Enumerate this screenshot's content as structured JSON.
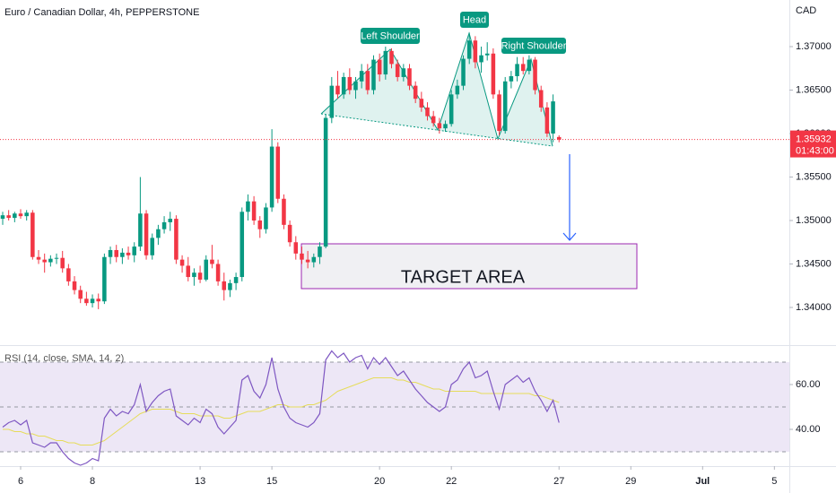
{
  "chart_data": [
    {
      "type": "candlestick",
      "title": "Euro / Canadian Dollar, 4h, PEPPERSTONE",
      "currency": "CAD",
      "up_color": "#089981",
      "down_color": "#f23645",
      "xlim": [
        -0.45,
        131.5
      ],
      "ylim": [
        1.33567,
        1.37536
      ],
      "yticks": [
        {
          "value": 1.34,
          "label": "1.34000"
        },
        {
          "value": 1.345,
          "label": "1.34500"
        },
        {
          "value": 1.35,
          "label": "1.35000"
        },
        {
          "value": 1.355,
          "label": "1.35500"
        },
        {
          "value": 1.36,
          "label": "1.36000"
        },
        {
          "value": 1.365,
          "label": "1.36500"
        },
        {
          "value": 1.37,
          "label": "1.37000"
        }
      ],
      "xticks": [
        {
          "value": 3,
          "label": "6"
        },
        {
          "value": 15,
          "label": "8"
        },
        {
          "value": 33,
          "label": "13"
        },
        {
          "value": 45,
          "label": "15"
        },
        {
          "value": 63,
          "label": "20"
        },
        {
          "value": 75,
          "label": "22"
        },
        {
          "value": 93,
          "label": "27"
        },
        {
          "value": 105,
          "label": "29"
        },
        {
          "value": 117,
          "label": "Jul"
        },
        {
          "value": 129,
          "label": "5"
        }
      ],
      "last_price": 1.35932,
      "countdown": "01:43:00",
      "annotations": [
        "Left Shoulder",
        "Head",
        "Right Shoulder",
        "TARGET AREA"
      ],
      "x": [
        0,
        1,
        2,
        3,
        4,
        5,
        6,
        7,
        8,
        9,
        10,
        11,
        12,
        13,
        14,
        15,
        16,
        17,
        18,
        19,
        20,
        21,
        22,
        23,
        24,
        25,
        26,
        27,
        28,
        29,
        30,
        31,
        32,
        33,
        34,
        35,
        36,
        37,
        38,
        39,
        40,
        41,
        42,
        43,
        44,
        45,
        46,
        47,
        48,
        49,
        50,
        51,
        52,
        53,
        54,
        55,
        56,
        57,
        58,
        59,
        60,
        61,
        62,
        63,
        64,
        65,
        66,
        67,
        68,
        69,
        70,
        71,
        72,
        73,
        74,
        75,
        76,
        77,
        78,
        79,
        80,
        81,
        82,
        83,
        84,
        85,
        86,
        87,
        88,
        89,
        90,
        91,
        92,
        93
      ],
      "values": [
        [
          1.3502,
          1.351,
          1.3495,
          1.3506
        ],
        [
          1.3506,
          1.3512,
          1.35,
          1.3503
        ],
        [
          1.3503,
          1.351,
          1.3498,
          1.3508
        ],
        [
          1.3508,
          1.3513,
          1.3502,
          1.3505
        ],
        [
          1.3505,
          1.3512,
          1.35,
          1.3509
        ],
        [
          1.3509,
          1.3512,
          1.3455,
          1.3458
        ],
        [
          1.3458,
          1.3466,
          1.345,
          1.3455
        ],
        [
          1.3455,
          1.3462,
          1.344,
          1.3452
        ],
        [
          1.3452,
          1.346,
          1.3447,
          1.3456
        ],
        [
          1.3456,
          1.3462,
          1.345,
          1.3457
        ],
        [
          1.3457,
          1.3465,
          1.344,
          1.3445
        ],
        [
          1.3445,
          1.345,
          1.3425,
          1.343
        ],
        [
          1.343,
          1.3436,
          1.3415,
          1.342
        ],
        [
          1.342,
          1.3425,
          1.3405,
          1.341
        ],
        [
          1.341,
          1.3418,
          1.3402,
          1.3405
        ],
        [
          1.3405,
          1.3415,
          1.34,
          1.341
        ],
        [
          1.341,
          1.3416,
          1.3398,
          1.3407
        ],
        [
          1.3407,
          1.3462,
          1.3404,
          1.3458
        ],
        [
          1.3458,
          1.347,
          1.345,
          1.3466
        ],
        [
          1.3466,
          1.3472,
          1.3452,
          1.3458
        ],
        [
          1.3458,
          1.3468,
          1.345,
          1.3463
        ],
        [
          1.3463,
          1.347,
          1.3455,
          1.346
        ],
        [
          1.346,
          1.3475,
          1.3452,
          1.347
        ],
        [
          1.347,
          1.355,
          1.3465,
          1.3508
        ],
        [
          1.3508,
          1.3512,
          1.3455,
          1.346
        ],
        [
          1.346,
          1.3485,
          1.3455,
          1.348
        ],
        [
          1.348,
          1.3495,
          1.3472,
          1.349
        ],
        [
          1.349,
          1.3505,
          1.3485,
          1.3498
        ],
        [
          1.3498,
          1.351,
          1.3488,
          1.3502
        ],
        [
          1.3502,
          1.3506,
          1.345,
          1.3455
        ],
        [
          1.3455,
          1.346,
          1.344,
          1.3448
        ],
        [
          1.3448,
          1.3458,
          1.343,
          1.3435
        ],
        [
          1.3435,
          1.3445,
          1.3425,
          1.344
        ],
        [
          1.344,
          1.3448,
          1.3428,
          1.3432
        ],
        [
          1.3432,
          1.346,
          1.343,
          1.3455
        ],
        [
          1.3455,
          1.3472,
          1.3445,
          1.345
        ],
        [
          1.345,
          1.3455,
          1.3425,
          1.343
        ],
        [
          1.343,
          1.344,
          1.3408,
          1.342
        ],
        [
          1.342,
          1.3432,
          1.3412,
          1.3428
        ],
        [
          1.3428,
          1.344,
          1.342,
          1.3435
        ],
        [
          1.3435,
          1.3515,
          1.343,
          1.351
        ],
        [
          1.351,
          1.353,
          1.35,
          1.3522
        ],
        [
          1.3522,
          1.3528,
          1.3495,
          1.35
        ],
        [
          1.35,
          1.3505,
          1.348,
          1.349
        ],
        [
          1.349,
          1.352,
          1.3485,
          1.3515
        ],
        [
          1.3515,
          1.3605,
          1.351,
          1.3585
        ],
        [
          1.3585,
          1.359,
          1.352,
          1.3525
        ],
        [
          1.3525,
          1.353,
          1.349,
          1.3495
        ],
        [
          1.3495,
          1.35,
          1.347,
          1.3475
        ],
        [
          1.3475,
          1.3482,
          1.3455,
          1.3462
        ],
        [
          1.3462,
          1.347,
          1.345,
          1.3455
        ],
        [
          1.3455,
          1.3465,
          1.3445,
          1.3452
        ],
        [
          1.3452,
          1.3462,
          1.3446,
          1.3458
        ],
        [
          1.3458,
          1.3475,
          1.345,
          1.347
        ],
        [
          1.347,
          1.3622,
          1.3468,
          1.3618
        ],
        [
          1.3618,
          1.3665,
          1.3612,
          1.3655
        ],
        [
          1.3655,
          1.3672,
          1.364,
          1.3645
        ],
        [
          1.3645,
          1.367,
          1.364,
          1.3665
        ],
        [
          1.3665,
          1.3675,
          1.3645,
          1.365
        ],
        [
          1.365,
          1.3665,
          1.364,
          1.366
        ],
        [
          1.366,
          1.368,
          1.3652,
          1.3672
        ],
        [
          1.3672,
          1.368,
          1.3645,
          1.365
        ],
        [
          1.365,
          1.369,
          1.3645,
          1.3685
        ],
        [
          1.3685,
          1.3692,
          1.366,
          1.3668
        ],
        [
          1.3668,
          1.37,
          1.3662,
          1.3695
        ],
        [
          1.3695,
          1.3698,
          1.3675,
          1.368
        ],
        [
          1.368,
          1.3685,
          1.366,
          1.3665
        ],
        [
          1.3665,
          1.368,
          1.366,
          1.3675
        ],
        [
          1.3675,
          1.368,
          1.365,
          1.3655
        ],
        [
          1.3655,
          1.366,
          1.3635,
          1.364
        ],
        [
          1.364,
          1.3648,
          1.3625,
          1.363
        ],
        [
          1.363,
          1.3636,
          1.3615,
          1.362
        ],
        [
          1.362,
          1.3626,
          1.3608,
          1.3612
        ],
        [
          1.3612,
          1.3618,
          1.36,
          1.3606
        ],
        [
          1.3606,
          1.3615,
          1.3602,
          1.3611
        ],
        [
          1.3611,
          1.365,
          1.3608,
          1.3645
        ],
        [
          1.3645,
          1.3662,
          1.364,
          1.3655
        ],
        [
          1.3655,
          1.369,
          1.365,
          1.3686
        ],
        [
          1.3686,
          1.3716,
          1.368,
          1.3707
        ],
        [
          1.3707,
          1.3712,
          1.3675,
          1.3682
        ],
        [
          1.3682,
          1.37,
          1.367,
          1.369
        ],
        [
          1.369,
          1.3705,
          1.3684,
          1.3692
        ],
        [
          1.3692,
          1.3698,
          1.364,
          1.3645
        ],
        [
          1.3645,
          1.365,
          1.3598,
          1.3603
        ],
        [
          1.3603,
          1.3665,
          1.36,
          1.366
        ],
        [
          1.366,
          1.3672,
          1.3652,
          1.3666
        ],
        [
          1.3666,
          1.3688,
          1.366,
          1.368
        ],
        [
          1.368,
          1.3688,
          1.3668,
          1.3672
        ],
        [
          1.3672,
          1.369,
          1.3668,
          1.3685
        ],
        [
          1.3685,
          1.3688,
          1.3645,
          1.365
        ],
        [
          1.365,
          1.3655,
          1.3625,
          1.363
        ],
        [
          1.363,
          1.3636,
          1.3596,
          1.36
        ],
        [
          1.36,
          1.3645,
          1.359,
          1.3637
        ],
        [
          1.3596,
          1.3598,
          1.359,
          1.3593
        ]
      ]
    },
    {
      "type": "line",
      "title": "RSI (14, close, SMA, 14, 2)",
      "ylim": [
        23.6,
        77.6
      ],
      "yticks": [
        {
          "value": 40,
          "label": "40.00"
        },
        {
          "value": 60,
          "label": "60.00"
        }
      ],
      "levels": [
        30,
        50,
        70
      ],
      "band_color": "#ede7f6",
      "series": [
        {
          "color": "#7e57c2",
          "values": [
            41,
            43,
            44,
            42,
            44,
            34,
            33,
            32,
            34,
            34,
            30,
            27,
            25,
            24,
            25,
            27,
            26,
            45,
            49,
            46,
            48,
            47,
            51,
            60,
            48,
            52,
            55,
            57,
            58,
            46,
            44,
            42,
            45,
            43,
            49,
            47,
            41,
            38,
            41,
            44,
            62,
            64,
            57,
            54,
            60,
            72,
            58,
            50,
            45,
            43,
            42,
            41,
            43,
            47,
            71,
            75,
            72,
            74,
            70,
            72,
            73,
            67,
            72,
            69,
            72,
            68,
            64,
            66,
            62,
            58,
            55,
            52,
            50,
            48,
            50,
            60,
            62,
            67,
            70,
            63,
            64,
            66,
            57,
            49,
            60,
            62,
            64,
            61,
            63,
            57,
            53,
            48,
            53,
            43
          ]
        },
        {
          "color": "#e6dc5a",
          "values": [
            40,
            40,
            39,
            39,
            38,
            38,
            37,
            37,
            36,
            35,
            35,
            34,
            34,
            33,
            33,
            33,
            34,
            35,
            37,
            39,
            41,
            43,
            45,
            47,
            48,
            49,
            49,
            49,
            49,
            48,
            47,
            47,
            47,
            46,
            46,
            46,
            46,
            45,
            45,
            46,
            47,
            48,
            48,
            48,
            49,
            50,
            51,
            51,
            50,
            50,
            50,
            51,
            51,
            52,
            53,
            55,
            57,
            58,
            59,
            60,
            61,
            62,
            63,
            63,
            63,
            63,
            62,
            62,
            61,
            61,
            60,
            59,
            58,
            58,
            57,
            57,
            57,
            57,
            57,
            57,
            56,
            56,
            56,
            56,
            56,
            56,
            56,
            56,
            56,
            55,
            55,
            54,
            53,
            52
          ]
        }
      ]
    }
  ]
}
